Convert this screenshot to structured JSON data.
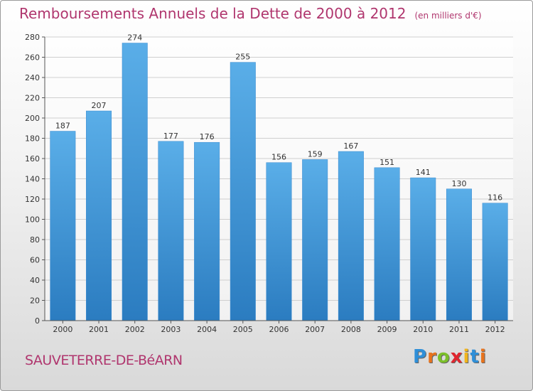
{
  "title": "Remboursements Annuels de la Dette de 2000 à 2012",
  "unit": "(en milliers d'€)",
  "commune": "SAUVETERRE-DE-BéARN",
  "logo": {
    "letters": [
      "P",
      "r",
      "o",
      "x",
      "i",
      "t",
      "i"
    ],
    "colors": [
      "#2f8fd8",
      "#e8731d",
      "#7bbf2a",
      "#e0262f",
      "#f0b41c",
      "#2f8fd8",
      "#e8731d"
    ]
  },
  "colors": {
    "bar_light": "#5aaee8",
    "bar_dark": "#2b7cc0",
    "title": "#b0366e"
  },
  "chart_data": {
    "type": "bar",
    "categories": [
      "2000",
      "2001",
      "2002",
      "2003",
      "2004",
      "2005",
      "2006",
      "2007",
      "2008",
      "2009",
      "2010",
      "2011",
      "2012"
    ],
    "values": [
      187,
      207,
      274,
      177,
      176,
      255,
      156,
      159,
      167,
      151,
      141,
      130,
      116
    ],
    "ylim": [
      0,
      280
    ],
    "yticks": [
      0,
      20,
      40,
      60,
      80,
      100,
      120,
      140,
      160,
      180,
      200,
      220,
      240,
      260,
      280
    ],
    "grid": true
  }
}
